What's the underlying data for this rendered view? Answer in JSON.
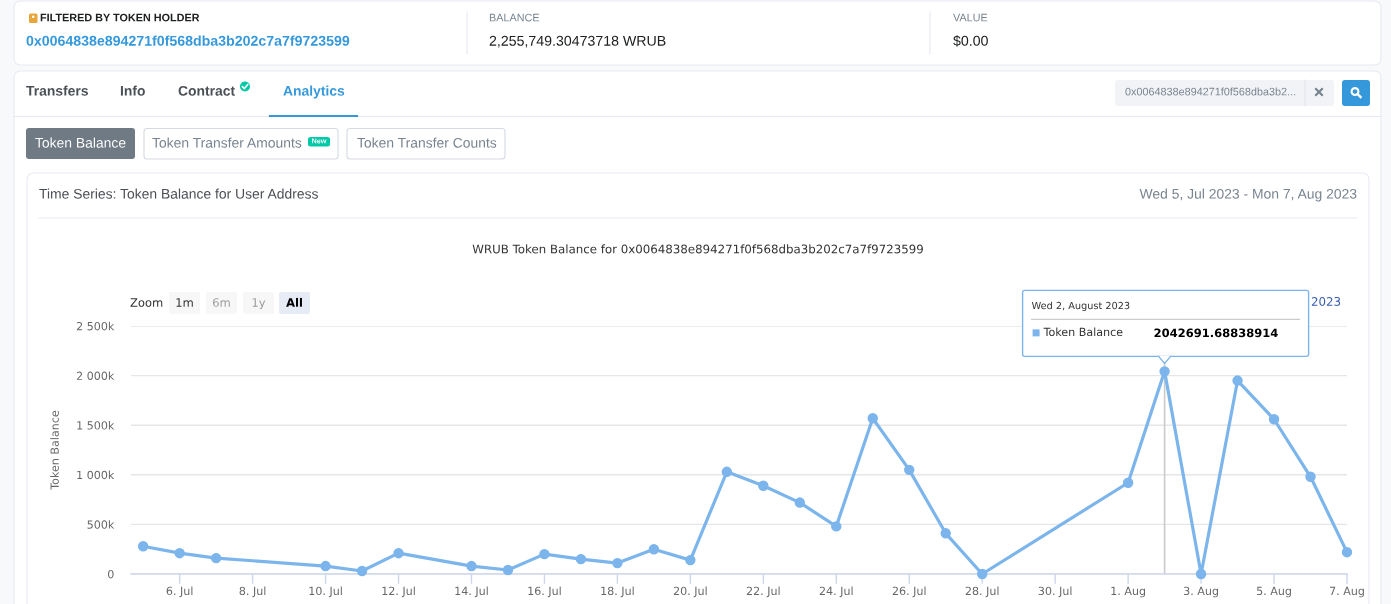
{
  "chart_data": {
    "type": "line",
    "title": "WRUB Token Balance for 0x0064838e894271f0f568dba3b202c7a7f9723599",
    "ylabel": "Token Balance",
    "x": [
      "2023-07-05",
      "2023-07-06",
      "2023-07-07",
      "2023-07-10",
      "2023-07-11",
      "2023-07-12",
      "2023-07-14",
      "2023-07-15",
      "2023-07-16",
      "2023-07-17",
      "2023-07-18",
      "2023-07-19",
      "2023-07-20",
      "2023-07-21",
      "2023-07-22",
      "2023-07-23",
      "2023-07-24",
      "2023-07-25",
      "2023-07-26",
      "2023-07-27",
      "2023-07-28",
      "2023-08-01",
      "2023-08-02",
      "2023-08-03",
      "2023-08-04",
      "2023-08-05",
      "2023-08-06",
      "2023-08-07"
    ],
    "series": [
      {
        "name": "Token Balance",
        "color": "#7cb5ec",
        "values": [
          280000,
          210000,
          160000,
          80000,
          30000,
          210000,
          80000,
          40000,
          200000,
          150000,
          110000,
          250000,
          140000,
          1030000,
          890000,
          720000,
          480000,
          1570000,
          1050000,
          410000,
          0,
          920000,
          2042691.68838914,
          0,
          1950000,
          1560000,
          980000,
          220000
        ],
        "value_labels": [
          null,
          null,
          null,
          null,
          null,
          null,
          null,
          null,
          null,
          null,
          null,
          null,
          null,
          null,
          null,
          null,
          null,
          null,
          null,
          null,
          null,
          null,
          "2042691.68838914",
          null,
          null,
          null,
          null,
          null
        ]
      }
    ],
    "xlim": [
      "2023-07-04T16:00",
      "2023-08-07"
    ],
    "xticks": [
      {
        "value": "2023-07-06",
        "label": "6. Jul"
      },
      {
        "value": "2023-07-08",
        "label": "8. Jul"
      },
      {
        "value": "2023-07-10",
        "label": "10. Jul"
      },
      {
        "value": "2023-07-12",
        "label": "12. Jul"
      },
      {
        "value": "2023-07-14",
        "label": "14. Jul"
      },
      {
        "value": "2023-07-16",
        "label": "16. Jul"
      },
      {
        "value": "2023-07-18",
        "label": "18. Jul"
      },
      {
        "value": "2023-07-20",
        "label": "20. Jul"
      },
      {
        "value": "2023-07-22",
        "label": "22. Jul"
      },
      {
        "value": "2023-07-24",
        "label": "24. Jul"
      },
      {
        "value": "2023-07-26",
        "label": "26. Jul"
      },
      {
        "value": "2023-07-28",
        "label": "28. Jul"
      },
      {
        "value": "2023-07-30",
        "label": "30. Jul"
      },
      {
        "value": "2023-08-01",
        "label": "1. Aug"
      },
      {
        "value": "2023-08-03",
        "label": "3. Aug"
      },
      {
        "value": "2023-08-05",
        "label": "5. Aug"
      },
      {
        "value": "2023-08-07",
        "label": "7. Aug"
      }
    ],
    "ylim": [
      0,
      2500000
    ],
    "yticks": [
      0,
      {
        "value": 500000,
        "label": "500k"
      },
      {
        "value": 1000000,
        "label": "1 000k"
      },
      {
        "value": 1500000,
        "label": "1 500k"
      },
      {
        "value": 2000000,
        "label": "2 000k"
      },
      {
        "value": 2500000,
        "label": "2 500k"
      }
    ],
    "grid": "y",
    "marker": "circle",
    "line_style": "solid",
    "ref_lines": [
      {
        "axis": "x",
        "value": "2023-08-02",
        "color": "#cccccc"
      }
    ],
    "annotations": [
      "FILTERED BY TOKEN HOLDER",
      "0x0064838e894271f0f568dba3b202c7a7f9723599",
      "BALANCE",
      "2,255,749.30473718 WRUB",
      "VALUE",
      "$0.00",
      "Transfers",
      "Info",
      "Contract",
      "Analytics",
      "0x0064838e894271f0f568dba3b2...",
      "Token Balance",
      "Token Transfer Amounts",
      "New",
      "Token Transfer Counts",
      "Time Series: Token Balance for User Address",
      "Wed 5, Jul 2023 - Mon 7, Aug 2023",
      "Zoom",
      "1m",
      "6m",
      "1y",
      "All",
      "2023",
      "Wed 2, August 2023"
    ]
  }
}
